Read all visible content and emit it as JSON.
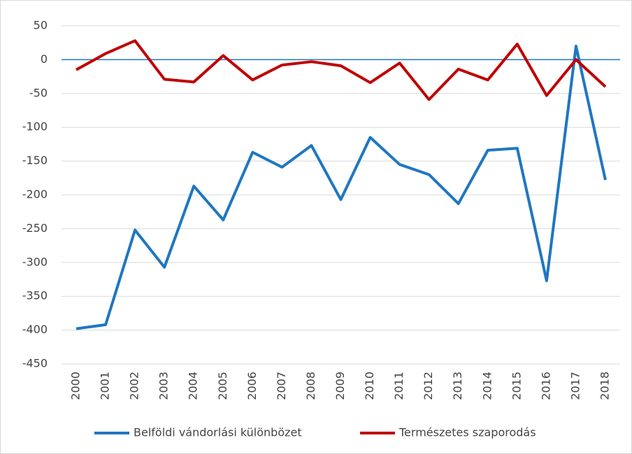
{
  "chart_data": {
    "type": "line",
    "categories": [
      "2000",
      "2001",
      "2002",
      "2003",
      "2004",
      "2005",
      "2006",
      "2007",
      "2008",
      "2009",
      "2010",
      "2011",
      "2012",
      "2013",
      "2014",
      "2015",
      "2016",
      "2017",
      "2018"
    ],
    "series": [
      {
        "name": "Belföldi vándorlási különbözet",
        "color": "#1f77c0",
        "values": [
          -398,
          -392,
          -252,
          -307,
          -187,
          -237,
          -137,
          -159,
          -127,
          -207,
          -115,
          -155,
          -170,
          -213,
          -134,
          -131,
          -327,
          20,
          -178
        ]
      },
      {
        "name": "Természetes szaporodás",
        "color": "#c00000",
        "values": [
          -15,
          9,
          28,
          -29,
          -33,
          6,
          -30,
          -8,
          -3,
          -9,
          -34,
          -5,
          -59,
          -14,
          -30,
          23,
          -53,
          0,
          -40
        ]
      }
    ],
    "ylim": [
      -450,
      50
    ],
    "yticks": [
      -450,
      -400,
      -350,
      -300,
      -250,
      -200,
      -150,
      -100,
      -50,
      0,
      50
    ],
    "grid": true,
    "legend": "bottom"
  }
}
